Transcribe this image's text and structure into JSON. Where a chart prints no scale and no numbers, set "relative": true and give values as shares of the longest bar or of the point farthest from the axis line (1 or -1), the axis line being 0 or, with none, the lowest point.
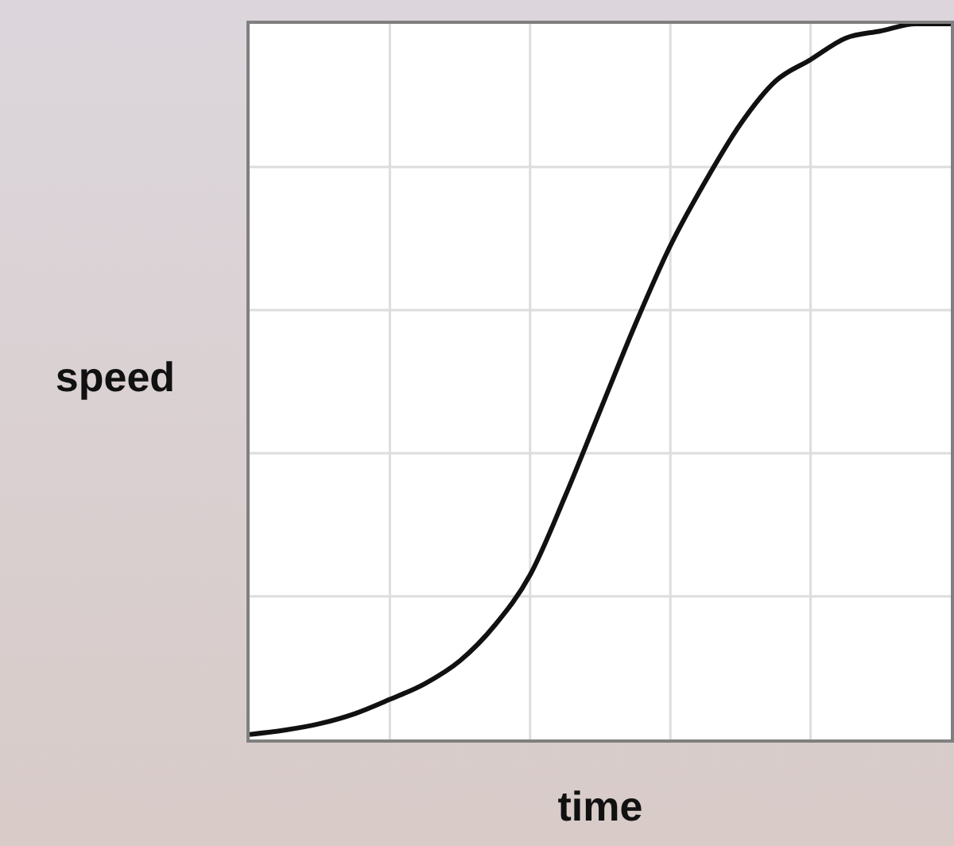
{
  "chart_data": {
    "type": "line",
    "xlabel": "time",
    "ylabel": "speed",
    "relative": true,
    "grid": true,
    "tick_labels": false,
    "marker": "none",
    "categories": [
      null,
      null,
      null,
      null,
      null,
      null,
      null,
      null,
      null,
      null,
      null,
      null,
      null,
      null,
      null,
      null,
      null,
      null,
      null,
      null,
      null
    ],
    "series": [
      {
        "color": "#111111",
        "values": [
          0.007,
          0.013,
          0.022,
          0.036,
          0.056,
          0.078,
          0.11,
          0.16,
          0.23,
          0.34,
          0.46,
          0.58,
          0.69,
          0.78,
          0.86,
          0.92,
          0.95,
          0.98,
          0.99,
          1.0,
          1.0
        ]
      }
    ]
  }
}
